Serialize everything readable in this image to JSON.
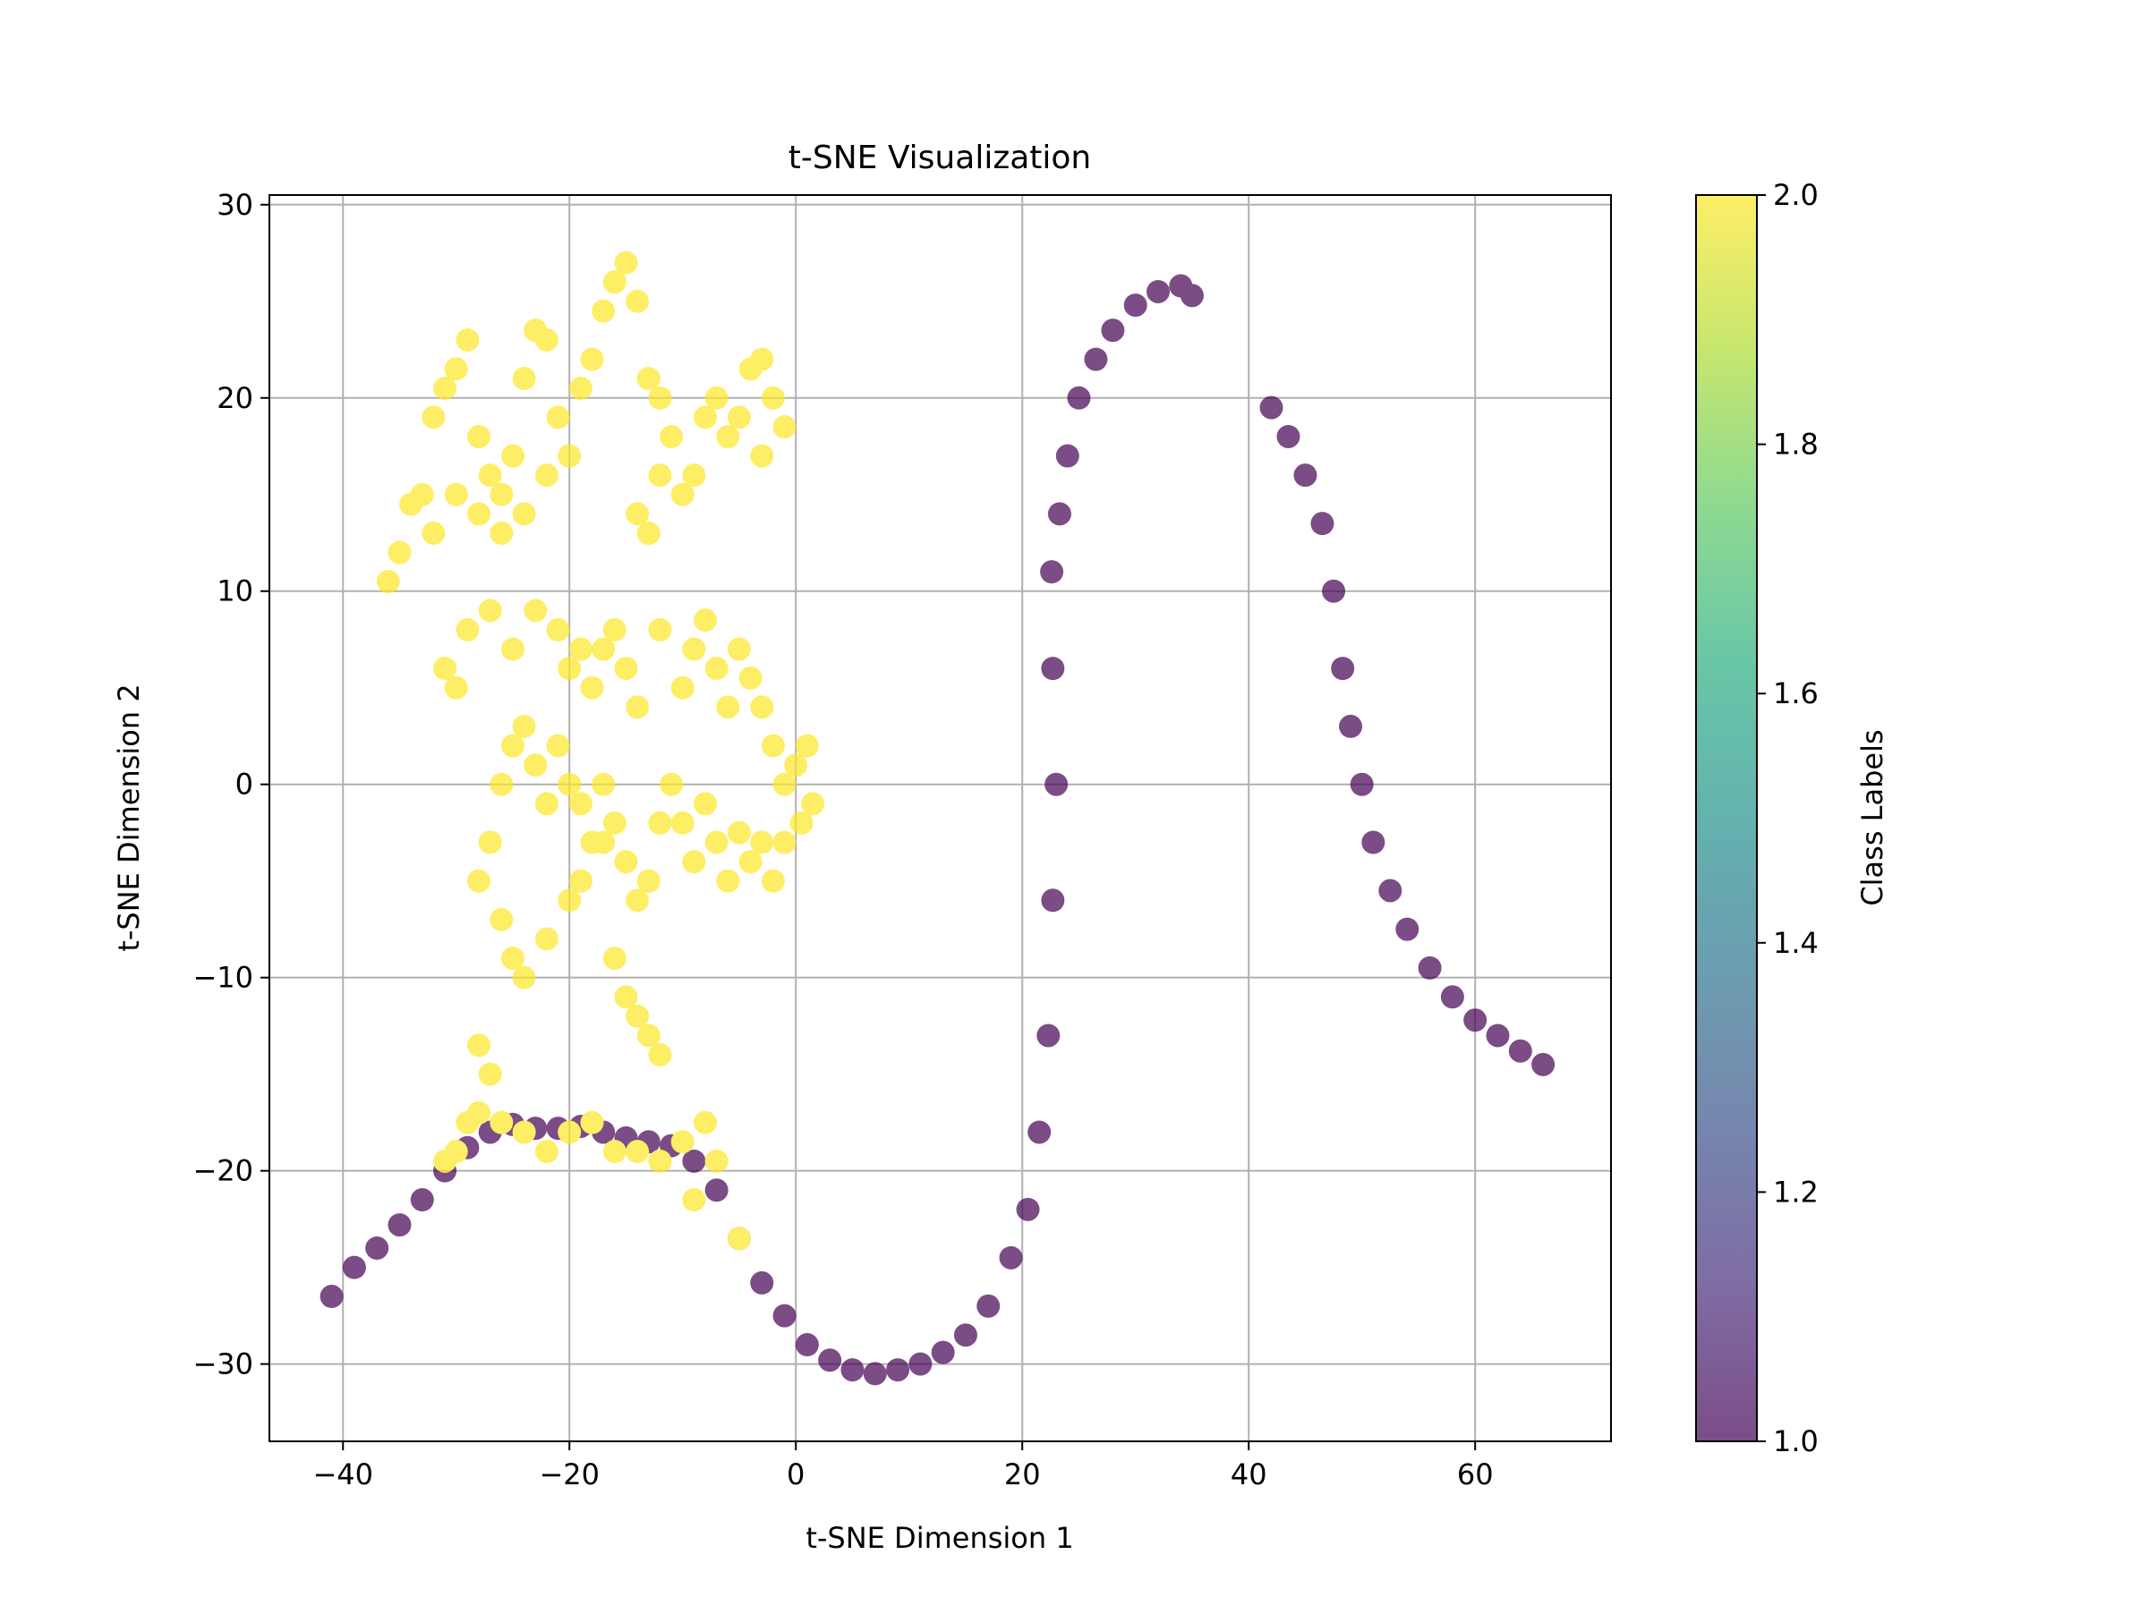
{
  "chart_data": {
    "type": "scatter",
    "title": "t-SNE Visualization",
    "xlabel": "t-SNE Dimension 1",
    "ylabel": "t-SNE Dimension 2",
    "xlim": [
      -46.5,
      72
    ],
    "ylim": [
      -34,
      30.5
    ],
    "xticks": [
      -40,
      -20,
      0,
      20,
      40,
      60
    ],
    "yticks": [
      -30,
      -20,
      -10,
      0,
      10,
      20,
      30
    ],
    "xtick_labels": [
      "−40",
      "−20",
      "0",
      "20",
      "40",
      "60"
    ],
    "ytick_labels": [
      "−30",
      "−20",
      "−10",
      "0",
      "10",
      "20",
      "30"
    ],
    "grid": true,
    "colorbar": {
      "label": "Class Labels",
      "range": [
        1.0,
        2.0
      ],
      "ticks": [
        1.0,
        1.2,
        1.4,
        1.6,
        1.8,
        2.0
      ],
      "tick_labels": [
        "1.0",
        "1.2",
        "1.4",
        "1.6",
        "1.8",
        "2.0"
      ],
      "colormap": "viridis"
    },
    "series": [
      {
        "class": 1,
        "color": "#440154",
        "points": [
          [
            -41,
            -26.5
          ],
          [
            -39,
            -25
          ],
          [
            -37,
            -24
          ],
          [
            -35,
            -22.8
          ],
          [
            -33,
            -21.5
          ],
          [
            -31,
            -20
          ],
          [
            -29,
            -18.8
          ],
          [
            -27,
            -18
          ],
          [
            -25,
            -17.6
          ],
          [
            -23,
            -17.8
          ],
          [
            -21,
            -17.8
          ],
          [
            -19,
            -17.7
          ],
          [
            -17,
            -18
          ],
          [
            -15,
            -18.3
          ],
          [
            -13,
            -18.5
          ],
          [
            -11,
            -18.7
          ],
          [
            -9,
            -19.5
          ],
          [
            -7,
            -21
          ],
          [
            -5,
            -23.5
          ],
          [
            -3,
            -25.8
          ],
          [
            -1,
            -27.5
          ],
          [
            1,
            -29
          ],
          [
            3,
            -29.8
          ],
          [
            5,
            -30.3
          ],
          [
            7,
            -30.5
          ],
          [
            9,
            -30.3
          ],
          [
            11,
            -30
          ],
          [
            13,
            -29.4
          ],
          [
            15,
            -28.5
          ],
          [
            17,
            -27
          ],
          [
            19,
            -24.5
          ],
          [
            20.5,
            -22
          ],
          [
            21.5,
            -18
          ],
          [
            22.3,
            -13
          ],
          [
            22.7,
            -6
          ],
          [
            23,
            0
          ],
          [
            22.7,
            6
          ],
          [
            22.6,
            11
          ],
          [
            23.3,
            14
          ],
          [
            24,
            17
          ],
          [
            25,
            20
          ],
          [
            26.5,
            22
          ],
          [
            28,
            23.5
          ],
          [
            30,
            24.8
          ],
          [
            32,
            25.5
          ],
          [
            34,
            25.8
          ],
          [
            35,
            25.3
          ],
          [
            42,
            19.5
          ],
          [
            43.5,
            18
          ],
          [
            45,
            16
          ],
          [
            46.5,
            13.5
          ],
          [
            47.5,
            10
          ],
          [
            48.3,
            6
          ],
          [
            49,
            3
          ],
          [
            50,
            0
          ],
          [
            51,
            -3
          ],
          [
            52.5,
            -5.5
          ],
          [
            54,
            -7.5
          ],
          [
            56,
            -9.5
          ],
          [
            58,
            -11
          ],
          [
            60,
            -12.2
          ],
          [
            62,
            -13
          ],
          [
            64,
            -13.8
          ],
          [
            66,
            -14.5
          ]
        ]
      },
      {
        "class": 2,
        "color": "#fde725",
        "points": [
          [
            -36,
            10.5
          ],
          [
            -35,
            12
          ],
          [
            -34,
            14.5
          ],
          [
            -33,
            15
          ],
          [
            -32,
            19
          ],
          [
            -31,
            20.5
          ],
          [
            -30,
            21.5
          ],
          [
            -29,
            23
          ],
          [
            -28,
            18
          ],
          [
            -27,
            16
          ],
          [
            -26,
            15
          ],
          [
            -25,
            17
          ],
          [
            -24,
            21
          ],
          [
            -23,
            23.5
          ],
          [
            -22,
            23
          ],
          [
            -21,
            19
          ],
          [
            -20,
            17
          ],
          [
            -19,
            20.5
          ],
          [
            -18,
            22
          ],
          [
            -17,
            24.5
          ],
          [
            -16,
            26
          ],
          [
            -15,
            27
          ],
          [
            -14,
            25
          ],
          [
            -13,
            21
          ],
          [
            -12,
            20
          ],
          [
            -11,
            18
          ],
          [
            -10,
            15
          ],
          [
            -9,
            16
          ],
          [
            -8,
            19
          ],
          [
            -7,
            20
          ],
          [
            -6,
            18
          ],
          [
            -5,
            19
          ],
          [
            -4,
            21.5
          ],
          [
            -3,
            22
          ],
          [
            -2,
            20
          ],
          [
            -1,
            18.5
          ],
          [
            -3,
            17
          ],
          [
            -14,
            14
          ],
          [
            -13,
            13
          ],
          [
            -12,
            16
          ],
          [
            -22,
            16
          ],
          [
            -24,
            14
          ],
          [
            -26,
            13
          ],
          [
            -28,
            14
          ],
          [
            -30,
            15
          ],
          [
            -32,
            13
          ],
          [
            -31,
            6
          ],
          [
            -30,
            5
          ],
          [
            -29,
            8
          ],
          [
            -27,
            9
          ],
          [
            -25,
            7
          ],
          [
            -23,
            9
          ],
          [
            -21,
            8
          ],
          [
            -20,
            6
          ],
          [
            -19,
            7
          ],
          [
            -18,
            5
          ],
          [
            -17,
            7
          ],
          [
            -16,
            8
          ],
          [
            -15,
            6
          ],
          [
            -14,
            4
          ],
          [
            -12,
            8
          ],
          [
            -10,
            5
          ],
          [
            -9,
            7
          ],
          [
            -8,
            8.5
          ],
          [
            -7,
            6
          ],
          [
            -6,
            4
          ],
          [
            -5,
            7
          ],
          [
            -4,
            5.5
          ],
          [
            -3,
            4
          ],
          [
            -2,
            2
          ],
          [
            -1,
            0
          ],
          [
            0,
            1
          ],
          [
            1,
            2
          ],
          [
            1.5,
            -1
          ],
          [
            0.5,
            -2
          ],
          [
            -1,
            -3
          ],
          [
            -2,
            -5
          ],
          [
            -3,
            -3
          ],
          [
            -4,
            -4
          ],
          [
            -5,
            -2.5
          ],
          [
            -6,
            -5
          ],
          [
            -7,
            -3
          ],
          [
            -8,
            -1
          ],
          [
            -9,
            -4
          ],
          [
            -10,
            -2
          ],
          [
            -11,
            0
          ],
          [
            -12,
            -2
          ],
          [
            -13,
            -5
          ],
          [
            -14,
            -6
          ],
          [
            -15,
            -4
          ],
          [
            -16,
            -2
          ],
          [
            -17,
            0
          ],
          [
            -18,
            -3
          ],
          [
            -19,
            -1
          ],
          [
            -20,
            0
          ],
          [
            -21,
            2
          ],
          [
            -22,
            -1
          ],
          [
            -23,
            1
          ],
          [
            -24,
            3
          ],
          [
            -25,
            2
          ],
          [
            -26,
            0
          ],
          [
            -27,
            -3
          ],
          [
            -28,
            -5
          ],
          [
            -26,
            -7
          ],
          [
            -25,
            -9
          ],
          [
            -24,
            -10
          ],
          [
            -22,
            -8
          ],
          [
            -20,
            -6
          ],
          [
            -19,
            -5
          ],
          [
            -17,
            -3
          ],
          [
            -16,
            -9
          ],
          [
            -15,
            -11
          ],
          [
            -14,
            -12
          ],
          [
            -13,
            -13
          ],
          [
            -12,
            -14
          ],
          [
            -28,
            -13.5
          ],
          [
            -27,
            -15
          ],
          [
            -29,
            -17.5
          ],
          [
            -28,
            -17
          ],
          [
            -26,
            -17.5
          ],
          [
            -24,
            -18
          ],
          [
            -22,
            -19
          ],
          [
            -20,
            -18
          ],
          [
            -18,
            -17.5
          ],
          [
            -16,
            -19
          ],
          [
            -14,
            -19
          ],
          [
            -12,
            -19.5
          ],
          [
            -10,
            -18.5
          ],
          [
            -8,
            -17.5
          ],
          [
            -7,
            -19.5
          ],
          [
            -9,
            -21.5
          ],
          [
            -5,
            -23.5
          ],
          [
            -31,
            -19.5
          ],
          [
            -30,
            -19
          ]
        ]
      }
    ]
  }
}
